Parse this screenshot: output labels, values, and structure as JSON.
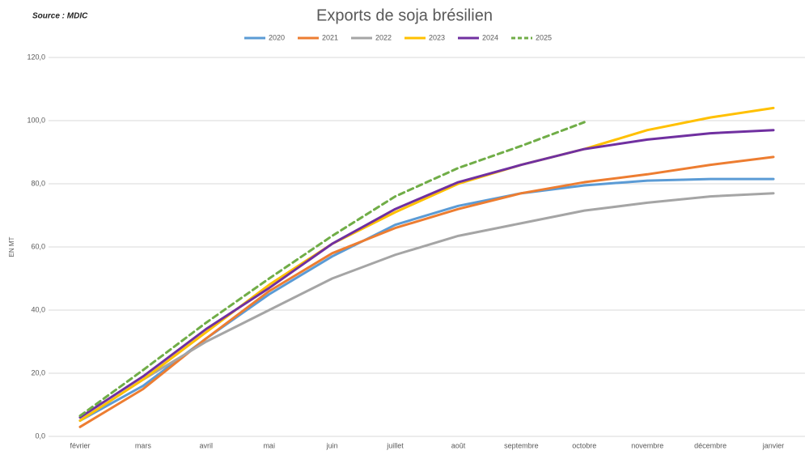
{
  "chart_data": {
    "type": "line",
    "title": "Exports de soja brésilien",
    "source": "Source : MDIC",
    "y_label": "EN MT",
    "categories": [
      "février",
      "mars",
      "avril",
      "mai",
      "juin",
      "juillet",
      "août",
      "septembre",
      "octobre",
      "novembre",
      "décembre",
      "janvier"
    ],
    "series": [
      {
        "name": "2020",
        "color": "#5b9bd5",
        "values": [
          5,
          16,
          31,
          45,
          57,
          67,
          73,
          77,
          79.5,
          81,
          81.5,
          81.5
        ]
      },
      {
        "name": "2021",
        "color": "#ed7d31",
        "values": [
          3,
          15,
          31,
          46,
          58,
          66,
          72,
          77,
          80.5,
          83,
          86,
          88.5
        ]
      },
      {
        "name": "2022",
        "color": "#a5a5a5",
        "values": [
          5,
          18,
          30,
          40,
          50,
          57.5,
          63.5,
          67.5,
          71.5,
          74,
          76,
          77
        ]
      },
      {
        "name": "2023",
        "color": "#ffc000",
        "values": [
          5,
          18,
          33,
          48,
          61,
          71,
          80,
          86,
          91,
          97,
          101,
          104
        ]
      },
      {
        "name": "2024",
        "color": "#7030a0",
        "values": [
          6,
          19,
          34,
          47,
          61,
          72,
          80.5,
          86,
          91,
          94,
          96,
          97
        ]
      },
      {
        "name": "2025",
        "color": "#70ad47",
        "dashed": true,
        "values": [
          6.5,
          21,
          36,
          50,
          63.5,
          76,
          85,
          92,
          99.5,
          null,
          null,
          null
        ]
      }
    ],
    "ylim": [
      0,
      120
    ],
    "yticks": [
      {
        "value": 0,
        "label": "0,0"
      },
      {
        "value": 20,
        "label": "20,0"
      },
      {
        "value": 40,
        "label": "40,0"
      },
      {
        "value": 60,
        "label": "60,0"
      },
      {
        "value": 80,
        "label": "80,0"
      },
      {
        "value": 100,
        "label": "100,0"
      },
      {
        "value": 120,
        "label": "120,0"
      }
    ],
    "grid": true,
    "legend": "top"
  }
}
